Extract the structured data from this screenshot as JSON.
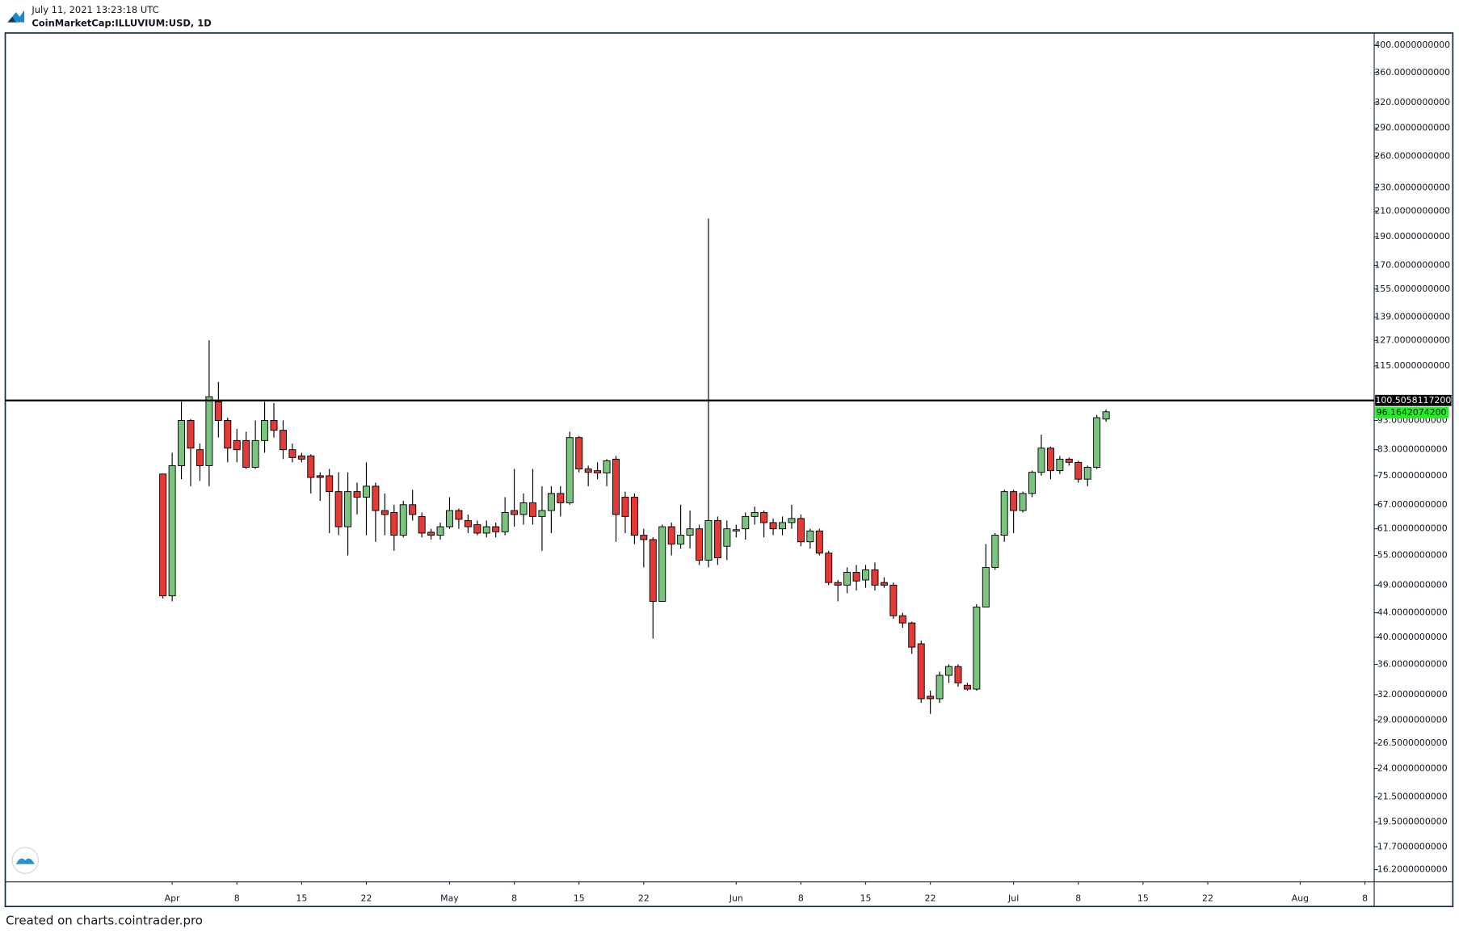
{
  "header": {
    "timestamp": "July 11, 2021 13:23:18 UTC",
    "symbol": "CoinMarketCap:ILLUVIUM:USD, 1D"
  },
  "footer": "Created on charts.cointrader.pro",
  "chart_data": {
    "type": "candlestick",
    "log_scale": true,
    "up_color": "#7bc47f",
    "down_color": "#e53935",
    "x": [
      "2021-03-31",
      "2021-04-01",
      "2021-04-02",
      "2021-04-03",
      "2021-04-04",
      "2021-04-05",
      "2021-04-06",
      "2021-04-07",
      "2021-04-08",
      "2021-04-09",
      "2021-04-10",
      "2021-04-11",
      "2021-04-12",
      "2021-04-13",
      "2021-04-14",
      "2021-04-15",
      "2021-04-16",
      "2021-04-17",
      "2021-04-18",
      "2021-04-19",
      "2021-04-20",
      "2021-04-21",
      "2021-04-22",
      "2021-04-23",
      "2021-04-24",
      "2021-04-25",
      "2021-04-26",
      "2021-04-27",
      "2021-04-28",
      "2021-04-29",
      "2021-04-30",
      "2021-05-01",
      "2021-05-02",
      "2021-05-03",
      "2021-05-04",
      "2021-05-05",
      "2021-05-06",
      "2021-05-07",
      "2021-05-08",
      "2021-05-09",
      "2021-05-10",
      "2021-05-11",
      "2021-05-12",
      "2021-05-13",
      "2021-05-14",
      "2021-05-15",
      "2021-05-16",
      "2021-05-17",
      "2021-05-18",
      "2021-05-19",
      "2021-05-20",
      "2021-05-21",
      "2021-05-22",
      "2021-05-23",
      "2021-05-24",
      "2021-05-25",
      "2021-05-26",
      "2021-05-27",
      "2021-05-28",
      "2021-05-29",
      "2021-05-30",
      "2021-05-31",
      "2021-06-01",
      "2021-06-02",
      "2021-06-03",
      "2021-06-04",
      "2021-06-05",
      "2021-06-06",
      "2021-06-07",
      "2021-06-08",
      "2021-06-09",
      "2021-06-10",
      "2021-06-11",
      "2021-06-12",
      "2021-06-13",
      "2021-06-14",
      "2021-06-15",
      "2021-06-16",
      "2021-06-17",
      "2021-06-18",
      "2021-06-19",
      "2021-06-20",
      "2021-06-21",
      "2021-06-22",
      "2021-06-23",
      "2021-06-24",
      "2021-06-25",
      "2021-06-26",
      "2021-06-27",
      "2021-06-28",
      "2021-06-29",
      "2021-06-30",
      "2021-07-01",
      "2021-07-02",
      "2021-07-03",
      "2021-07-04",
      "2021-07-05",
      "2021-07-06",
      "2021-07-07",
      "2021-07-08",
      "2021-07-09",
      "2021-07-10",
      "2021-07-11"
    ],
    "open": [
      75.5,
      47,
      78,
      93,
      83,
      78,
      100,
      93,
      86,
      86,
      77.5,
      86,
      93,
      89.5,
      83,
      81,
      81,
      75,
      75,
      70.5,
      61.5,
      70.5,
      69,
      72,
      65.5,
      65,
      59.5,
      67,
      64,
      60.2,
      59.5,
      61.5,
      65.5,
      63,
      62,
      60,
      61.5,
      60.3,
      65.5,
      64.5,
      67.5,
      64,
      65.5,
      70,
      67.5,
      87,
      77,
      76.5,
      75.8,
      80,
      69,
      69,
      59.5,
      58.5,
      46,
      61.5,
      57.5,
      59.5,
      61,
      54,
      63,
      57,
      60.5,
      61,
      64,
      65,
      62.5,
      61,
      62.5,
      63.5,
      58,
      60.5,
      55.5,
      49.5,
      49,
      51.5,
      50,
      52,
      49.5,
      49,
      43.5,
      42.3,
      39,
      31.8,
      31.5,
      34.5,
      35.7,
      33.2,
      32.7,
      45,
      52.5,
      59.5,
      70.5,
      65.5,
      70,
      76,
      83.5,
      76.5,
      80,
      79,
      74,
      77.5,
      93.5
    ],
    "high": [
      75.5,
      82,
      100,
      93.5,
      85,
      127,
      108,
      94,
      90,
      89,
      93,
      100,
      99.5,
      93,
      85,
      82,
      81.5,
      76,
      77,
      76,
      76,
      73,
      79,
      73,
      70,
      67,
      68,
      71,
      65,
      61,
      62.5,
      69,
      66,
      64.5,
      63,
      63,
      62.5,
      69,
      77,
      70,
      77,
      72,
      72,
      72,
      89,
      87.5,
      78,
      79,
      80,
      81,
      70.5,
      70,
      61,
      59,
      62,
      62.5,
      67,
      65.5,
      62,
      204,
      64,
      63,
      62,
      65,
      66.5,
      65.5,
      63.5,
      64,
      67,
      64.5,
      61,
      61,
      56,
      50,
      52.5,
      53,
      53,
      53.5,
      50.5,
      49.5,
      44,
      42.5,
      39.5,
      32.5,
      35,
      36,
      36,
      33.5,
      45.5,
      57.5,
      60,
      71,
      71,
      70.5,
      76.5,
      88,
      84,
      81,
      80.5,
      79.5,
      78,
      95,
      97
    ],
    "low": [
      46.5,
      46,
      74,
      72,
      73.5,
      72,
      87,
      79,
      79,
      77,
      77,
      82,
      87,
      80,
      79,
      79,
      70,
      68,
      60,
      59.5,
      55,
      64.5,
      59.5,
      58,
      59.5,
      56,
      59,
      63,
      59,
      58.5,
      58.5,
      61,
      61,
      60,
      59.5,
      59,
      59,
      59.5,
      61.5,
      62,
      62,
      56,
      60,
      64,
      67,
      76,
      72,
      74,
      72,
      58,
      60,
      57.5,
      52.5,
      39.8,
      46,
      55,
      56.5,
      56.5,
      53,
      52.5,
      53,
      54,
      59,
      58.5,
      62,
      59,
      59.5,
      59.5,
      61,
      57,
      56.5,
      55,
      49,
      46,
      47.5,
      48,
      48.5,
      48,
      48.5,
      43,
      41.5,
      37.5,
      31,
      29.7,
      31,
      33.5,
      33,
      32.5,
      32.5,
      45,
      52,
      58,
      60,
      65,
      69,
      75,
      74,
      75.5,
      78,
      73,
      72,
      77,
      92.5
    ],
    "close": [
      47,
      78,
      93,
      83.5,
      78,
      102,
      93,
      83.5,
      83,
      77.5,
      86,
      93,
      89.5,
      83,
      80.5,
      80,
      74.5,
      74.5,
      70.5,
      61.5,
      70.5,
      69,
      72,
      65.5,
      64.5,
      59.5,
      67,
      64.5,
      60,
      59.5,
      61.5,
      65.5,
      63.3,
      61.5,
      60,
      61.5,
      60.3,
      65,
      64.5,
      67.5,
      64,
      65.5,
      70,
      67.5,
      87,
      77,
      76,
      75.8,
      79.5,
      64.5,
      64,
      59.5,
      58.5,
      46,
      61.5,
      57.5,
      59.5,
      61,
      54,
      63,
      54.5,
      61,
      60.8,
      64,
      65,
      62.5,
      61,
      62.5,
      63.5,
      58,
      60.5,
      55.5,
      49.5,
      49,
      51.5,
      49.8,
      52,
      49,
      49,
      43.5,
      42.3,
      38.5,
      31.5,
      31.5,
      34.5,
      35.7,
      33.5,
      32.7,
      45,
      52.5,
      59.5,
      70.5,
      65.5,
      70,
      76,
      83.5,
      76.5,
      80,
      79,
      74,
      77.5,
      94,
      96.16420742
    ],
    "last_price_label": "96.1642074200",
    "last_price_color": "#22ee22",
    "horizontal_line": {
      "value": 100.50581172,
      "label": "100.5058117200",
      "color": "#000000"
    },
    "xlim": [
      "2021-03-14",
      "2021-08-09"
    ],
    "xticks": [
      {
        "value": "2021-04-01",
        "label": "Apr"
      },
      {
        "value": "2021-04-08",
        "label": "8"
      },
      {
        "value": "2021-04-15",
        "label": "15"
      },
      {
        "value": "2021-04-22",
        "label": "22"
      },
      {
        "value": "2021-05-01",
        "label": "May"
      },
      {
        "value": "2021-05-08",
        "label": "8"
      },
      {
        "value": "2021-05-15",
        "label": "15"
      },
      {
        "value": "2021-05-22",
        "label": "22"
      },
      {
        "value": "2021-06-01",
        "label": "Jun"
      },
      {
        "value": "2021-06-08",
        "label": "8"
      },
      {
        "value": "2021-06-15",
        "label": "15"
      },
      {
        "value": "2021-06-22",
        "label": "22"
      },
      {
        "value": "2021-07-01",
        "label": "Jul"
      },
      {
        "value": "2021-07-08",
        "label": "8"
      },
      {
        "value": "2021-07-15",
        "label": "15"
      },
      {
        "value": "2021-07-22",
        "label": "22"
      },
      {
        "value": "2021-08-01",
        "label": "Aug"
      },
      {
        "value": "2021-08-08",
        "label": "8"
      }
    ],
    "ylim": [
      15.45,
      419
    ],
    "yticks": [
      {
        "value": 400,
        "label": "400.0000000000"
      },
      {
        "value": 360,
        "label": "360.0000000000"
      },
      {
        "value": 320,
        "label": "320.0000000000"
      },
      {
        "value": 290,
        "label": "290.0000000000"
      },
      {
        "value": 260,
        "label": "260.0000000000"
      },
      {
        "value": 230,
        "label": "230.0000000000"
      },
      {
        "value": 210,
        "label": "210.0000000000"
      },
      {
        "value": 190,
        "label": "190.0000000000"
      },
      {
        "value": 170,
        "label": "170.0000000000"
      },
      {
        "value": 155,
        "label": "155.0000000000"
      },
      {
        "value": 139,
        "label": "139.0000000000"
      },
      {
        "value": 127,
        "label": "127.0000000000"
      },
      {
        "value": 115,
        "label": "115.0000000000"
      },
      {
        "value": 93,
        "label": "93.0000000000"
      },
      {
        "value": 83,
        "label": "83.0000000000"
      },
      {
        "value": 75,
        "label": "75.0000000000"
      },
      {
        "value": 67,
        "label": "67.0000000000"
      },
      {
        "value": 61,
        "label": "61.0000000000"
      },
      {
        "value": 55,
        "label": "55.0000000000"
      },
      {
        "value": 49,
        "label": "49.0000000000"
      },
      {
        "value": 44,
        "label": "44.0000000000"
      },
      {
        "value": 40,
        "label": "40.0000000000"
      },
      {
        "value": 36,
        "label": "36.0000000000"
      },
      {
        "value": 32,
        "label": "32.0000000000"
      },
      {
        "value": 29,
        "label": "29.0000000000"
      },
      {
        "value": 26.5,
        "label": "26.5000000000"
      },
      {
        "value": 24,
        "label": "24.0000000000"
      },
      {
        "value": 21.5,
        "label": "21.5000000000"
      },
      {
        "value": 19.5,
        "label": "19.5000000000"
      },
      {
        "value": 17.7,
        "label": "17.7000000000"
      },
      {
        "value": 16.2,
        "label": "16.2000000000"
      }
    ]
  }
}
